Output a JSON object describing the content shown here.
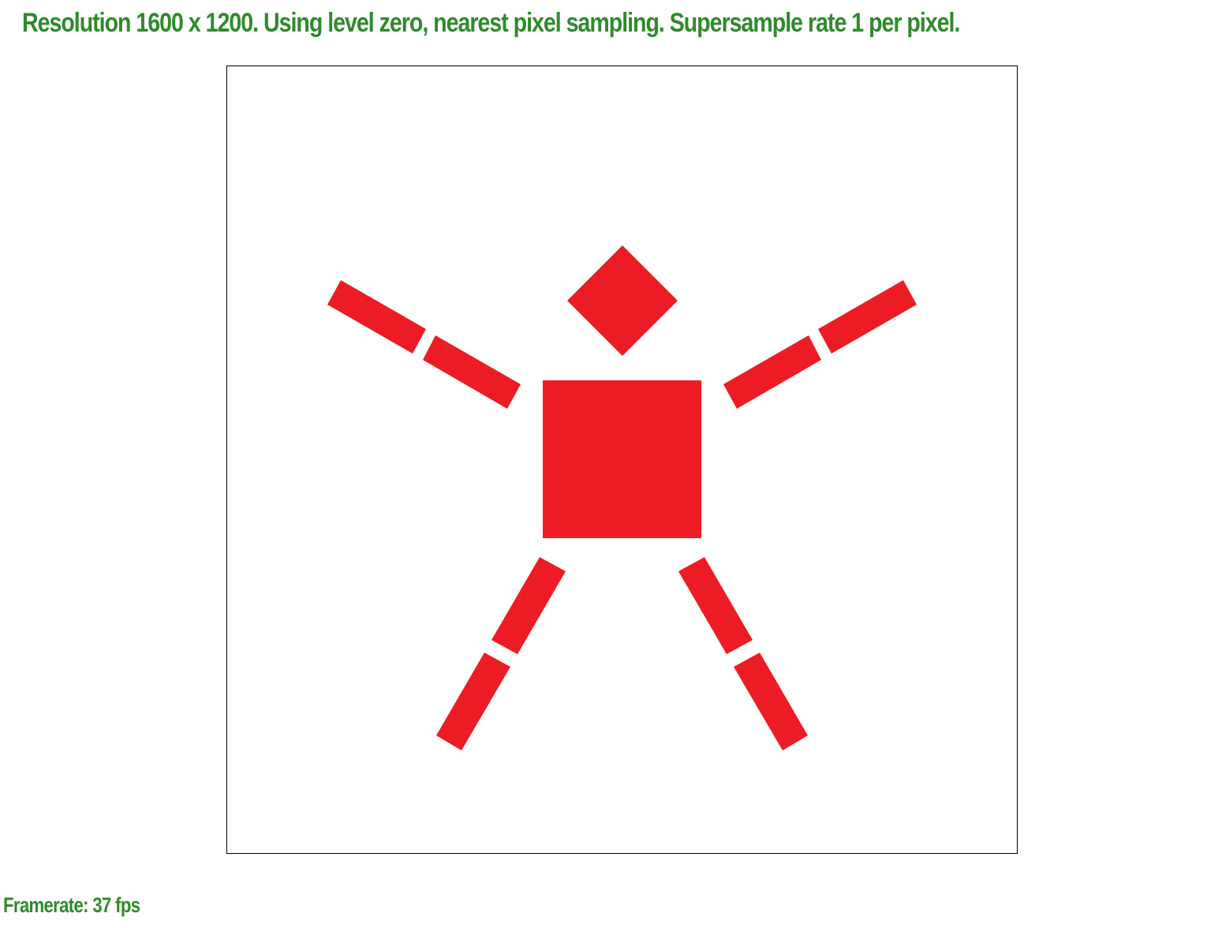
{
  "header": {
    "status_text": "Resolution 1600 x 1200. Using level zero, nearest pixel sampling. Supersample rate 1 per pixel."
  },
  "footer": {
    "framerate_text": "Framerate: 37 fps"
  },
  "colors": {
    "text": "#2e8b2a",
    "shape_fill": "#ed1c24",
    "viewport_border": "#000000",
    "background": "#ffffff"
  }
}
